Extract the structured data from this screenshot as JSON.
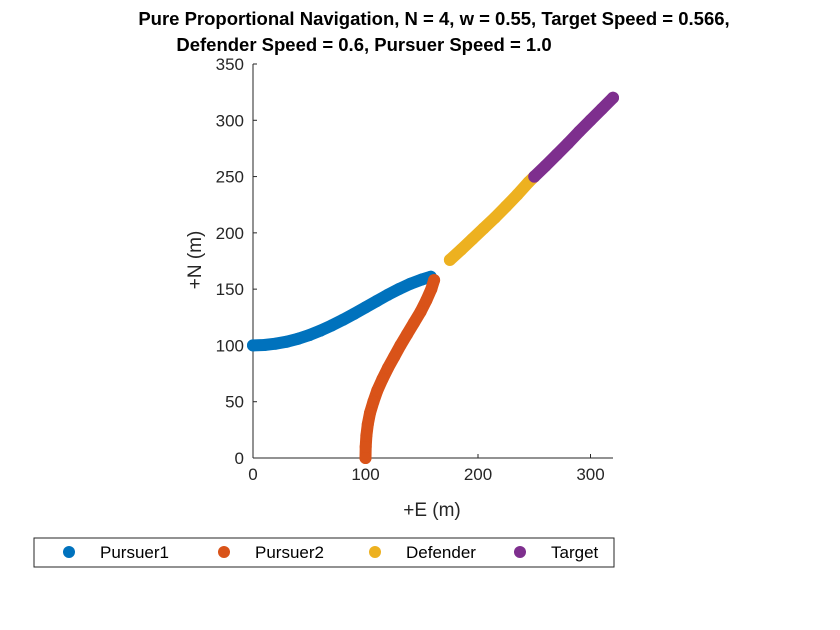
{
  "chart_data": {
    "type": "scatter",
    "title_lines": [
      "Pure Proportional Navigation, N = 4, w = 0.55, Target Speed = 0.566,",
      "Defender Speed = 0.6, Pursuer Speed = 1.0"
    ],
    "xlabel": "+E (m)",
    "ylabel": "+N (m)",
    "xlim": [
      0,
      320
    ],
    "ylim": [
      0,
      350
    ],
    "xticks": [
      0,
      100,
      200,
      300
    ],
    "yticks": [
      0,
      50,
      100,
      150,
      200,
      250,
      300,
      350
    ],
    "grid": false,
    "legend_position": "bottom",
    "series": [
      {
        "name": "Pursuer1",
        "color": "#0072BD",
        "points": [
          [
            0,
            100
          ],
          [
            10,
            100.4
          ],
          [
            20,
            101.5
          ],
          [
            30,
            103.3
          ],
          [
            40,
            105.9
          ],
          [
            50,
            109.2
          ],
          [
            60,
            113.2
          ],
          [
            70,
            117.8
          ],
          [
            80,
            122.8
          ],
          [
            90,
            128.2
          ],
          [
            100,
            133.8
          ],
          [
            110,
            139.5
          ],
          [
            120,
            145.1
          ],
          [
            130,
            150.2
          ],
          [
            140,
            154.8
          ],
          [
            150,
            158.6
          ],
          [
            158,
            161
          ]
        ]
      },
      {
        "name": "Pursuer2",
        "color": "#D95319",
        "points": [
          [
            100,
            0
          ],
          [
            100.2,
            10
          ],
          [
            100.8,
            20
          ],
          [
            102,
            30
          ],
          [
            104,
            40
          ],
          [
            107,
            50
          ],
          [
            110.5,
            60
          ],
          [
            115,
            70
          ],
          [
            120,
            80
          ],
          [
            125.5,
            90
          ],
          [
            131,
            100
          ],
          [
            137,
            110
          ],
          [
            143,
            120
          ],
          [
            149,
            130
          ],
          [
            154,
            140
          ],
          [
            158.5,
            150
          ],
          [
            161,
            158
          ]
        ]
      },
      {
        "name": "Defender",
        "color": "#EDB120",
        "points": [
          [
            175,
            176
          ],
          [
            185,
            185
          ],
          [
            195,
            194.5
          ],
          [
            205,
            204
          ],
          [
            215,
            213.5
          ],
          [
            225,
            223.5
          ],
          [
            235,
            234
          ],
          [
            245,
            245
          ],
          [
            250,
            250
          ]
        ]
      },
      {
        "name": "Target",
        "color": "#7E2F8E",
        "points": [
          [
            250,
            250
          ],
          [
            260,
            259.5
          ],
          [
            270,
            269.5
          ],
          [
            280,
            279.5
          ],
          [
            290,
            290
          ],
          [
            300,
            300
          ],
          [
            310,
            310
          ],
          [
            320,
            320
          ]
        ]
      }
    ]
  }
}
